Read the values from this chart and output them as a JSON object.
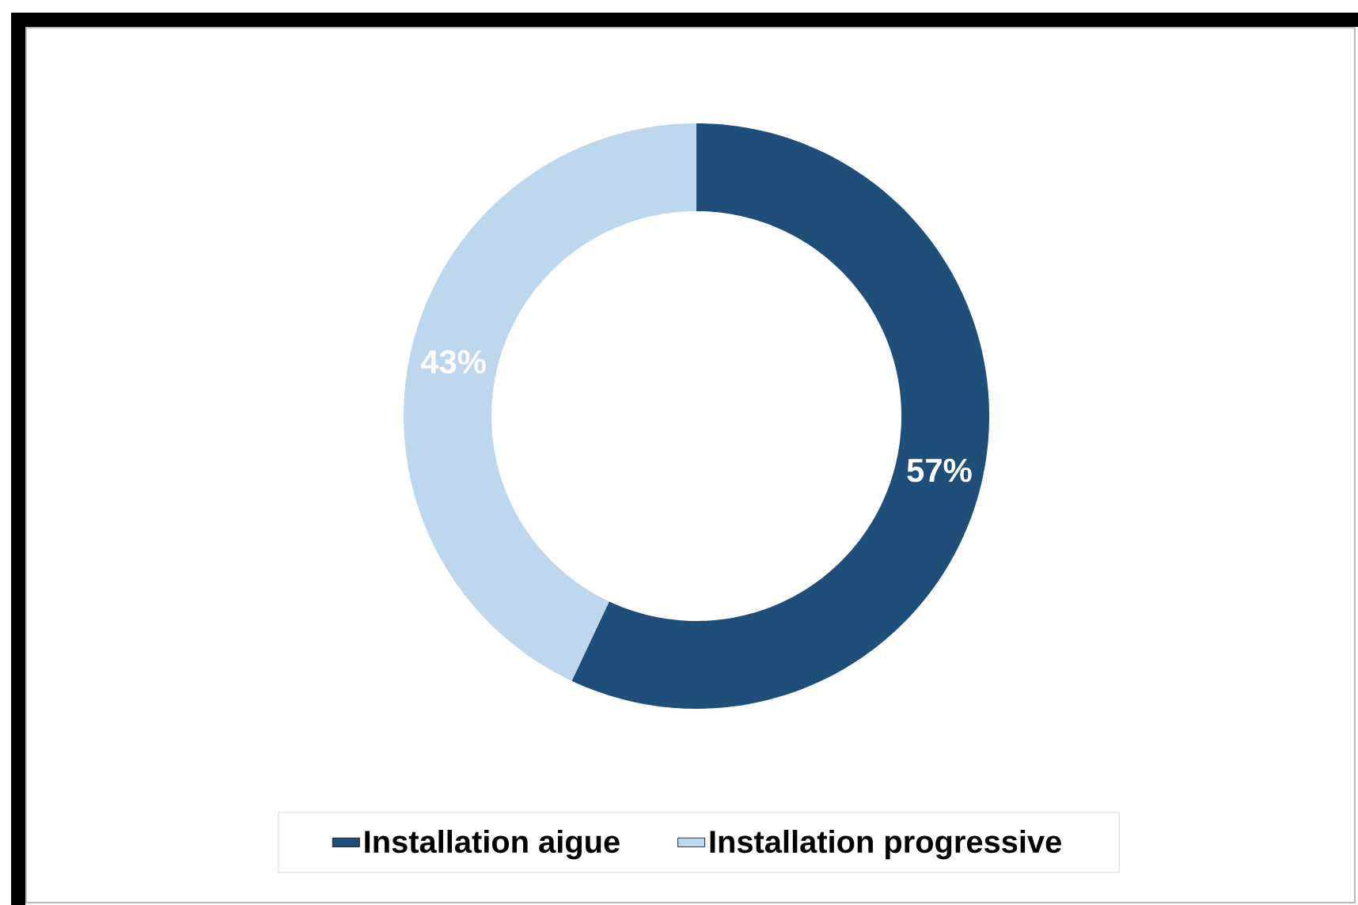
{
  "chart_data": {
    "type": "donut",
    "categories": [
      "Installation aigue",
      "Installation progressive"
    ],
    "values": [
      57,
      43
    ],
    "colors": [
      "#1f4e79",
      "#bdd7ee"
    ],
    "value_labels": [
      "57%",
      "43%"
    ],
    "legend": "bottom"
  }
}
